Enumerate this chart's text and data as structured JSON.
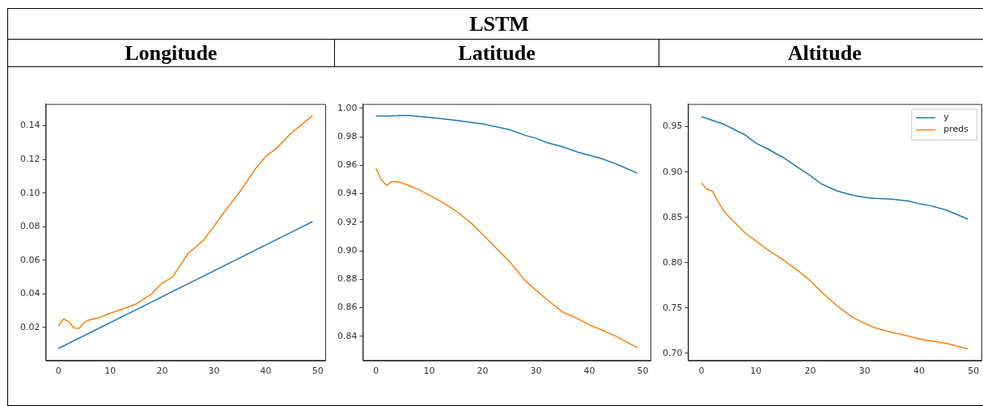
{
  "chart_data": [
    {
      "type": "line",
      "title": "Longitude",
      "annotations": [
        "LSTM"
      ],
      "x": [
        0,
        1,
        2,
        3,
        4,
        5,
        6,
        8,
        10,
        12,
        15,
        18,
        20,
        22,
        25,
        28,
        30,
        32,
        35,
        38,
        40,
        42,
        45,
        49
      ],
      "series": [
        {
          "color": "#1f77b4",
          "values": [
            0.0075,
            0.009,
            0.0106,
            0.0121,
            0.0137,
            0.0152,
            0.0167,
            0.0198,
            0.0229,
            0.026,
            0.0306,
            0.0352,
            0.0383,
            0.0414,
            0.046,
            0.0506,
            0.0537,
            0.0568,
            0.0614,
            0.0661,
            0.0691,
            0.0722,
            0.0768,
            0.083
          ]
        },
        {
          "color": "#ff7f0e",
          "values": [
            0.021,
            0.025,
            0.0235,
            0.0197,
            0.0195,
            0.023,
            0.0245,
            0.026,
            0.0285,
            0.0305,
            0.034,
            0.04,
            0.0464,
            0.05,
            0.064,
            0.072,
            0.0803,
            0.0888,
            0.1008,
            0.1144,
            0.1219,
            0.1265,
            0.136,
            0.146
          ]
        }
      ],
      "xlim": [
        -2.45,
        51.45
      ],
      "xticks": [
        0,
        10,
        20,
        30,
        40,
        50
      ],
      "ylim": [
        0.0003,
        0.153
      ],
      "yticks": [
        {
          "value": 0.02,
          "label": "0.02"
        },
        {
          "value": 0.04,
          "label": "0.04"
        },
        {
          "value": 0.06,
          "label": "0.06"
        },
        {
          "value": 0.08,
          "label": "0.08"
        },
        {
          "value": 0.1,
          "label": "0.10"
        },
        {
          "value": 0.12,
          "label": "0.12"
        },
        {
          "value": 0.14,
          "label": "0.14"
        }
      ]
    },
    {
      "type": "line",
      "title": "Latitude",
      "x": [
        0,
        1,
        2,
        3,
        4,
        5,
        6,
        8,
        10,
        12,
        15,
        18,
        20,
        22,
        25,
        28,
        30,
        32,
        35,
        38,
        40,
        42,
        45,
        49
      ],
      "series": [
        {
          "color": "#1f77b4",
          "values": [
            0.9945,
            0.9945,
            0.9945,
            0.9947,
            0.9948,
            0.995,
            0.995,
            0.9942,
            0.9935,
            0.9928,
            0.9915,
            0.99,
            0.989,
            0.9875,
            0.985,
            0.981,
            0.979,
            0.976,
            0.973,
            0.969,
            0.967,
            0.965,
            0.961,
            0.9545
          ]
        },
        {
          "color": "#ff7f0e",
          "values": [
            0.958,
            0.95,
            0.946,
            0.9485,
            0.9485,
            0.9475,
            0.946,
            0.943,
            0.939,
            0.935,
            0.928,
            0.919,
            0.9116,
            0.904,
            0.8925,
            0.879,
            0.8723,
            0.866,
            0.857,
            0.852,
            0.848,
            0.845,
            0.84,
            0.832
          ]
        }
      ],
      "xlim": [
        -2.45,
        51.45
      ],
      "xticks": [
        0,
        10,
        20,
        30,
        40,
        50
      ],
      "ylim": [
        0.823,
        1.003
      ],
      "yticks": [
        {
          "value": 0.84,
          "label": "0.84"
        },
        {
          "value": 0.86,
          "label": "0.86"
        },
        {
          "value": 0.88,
          "label": "0.88"
        },
        {
          "value": 0.9,
          "label": "0.90"
        },
        {
          "value": 0.92,
          "label": "0.92"
        },
        {
          "value": 0.94,
          "label": "0.94"
        },
        {
          "value": 0.96,
          "label": "0.96"
        },
        {
          "value": 0.98,
          "label": "0.98"
        },
        {
          "value": 1,
          "label": "1.00"
        }
      ]
    },
    {
      "type": "line",
      "title": "Altitude",
      "legend": "top right",
      "x": [
        0,
        1,
        2,
        3,
        4,
        5,
        6,
        8,
        10,
        12,
        15,
        18,
        20,
        22,
        25,
        28,
        30,
        32,
        35,
        38,
        40,
        42,
        45,
        49
      ],
      "series": [
        {
          "name": "y",
          "color": "#1f77b4",
          "values": [
            0.961,
            0.959,
            0.957,
            0.955,
            0.953,
            0.95,
            0.947,
            0.941,
            0.932,
            0.926,
            0.916,
            0.904,
            0.896,
            0.887,
            0.879,
            0.874,
            0.872,
            0.871,
            0.87,
            0.868,
            0.865,
            0.863,
            0.858,
            0.848
          ]
        },
        {
          "name": "preds",
          "color": "#ff7f0e",
          "values": [
            0.888,
            0.881,
            0.879,
            0.868,
            0.858,
            0.851,
            0.845,
            0.833,
            0.824,
            0.815,
            0.803,
            0.79,
            0.78,
            0.768,
            0.752,
            0.739,
            0.733,
            0.728,
            0.723,
            0.719,
            0.716,
            0.714,
            0.711,
            0.705
          ]
        }
      ],
      "xlim": [
        -2.45,
        51.45
      ],
      "xticks": [
        0,
        10,
        20,
        30,
        40,
        50
      ],
      "ylim": [
        0.692,
        0.975
      ],
      "yticks": [
        {
          "value": 0.7,
          "label": "0.70"
        },
        {
          "value": 0.75,
          "label": "0.75"
        },
        {
          "value": 0.8,
          "label": "0.80"
        },
        {
          "value": 0.85,
          "label": "0.85"
        },
        {
          "value": 0.9,
          "label": "0.90"
        },
        {
          "value": 0.95,
          "label": "0.95"
        }
      ]
    }
  ]
}
